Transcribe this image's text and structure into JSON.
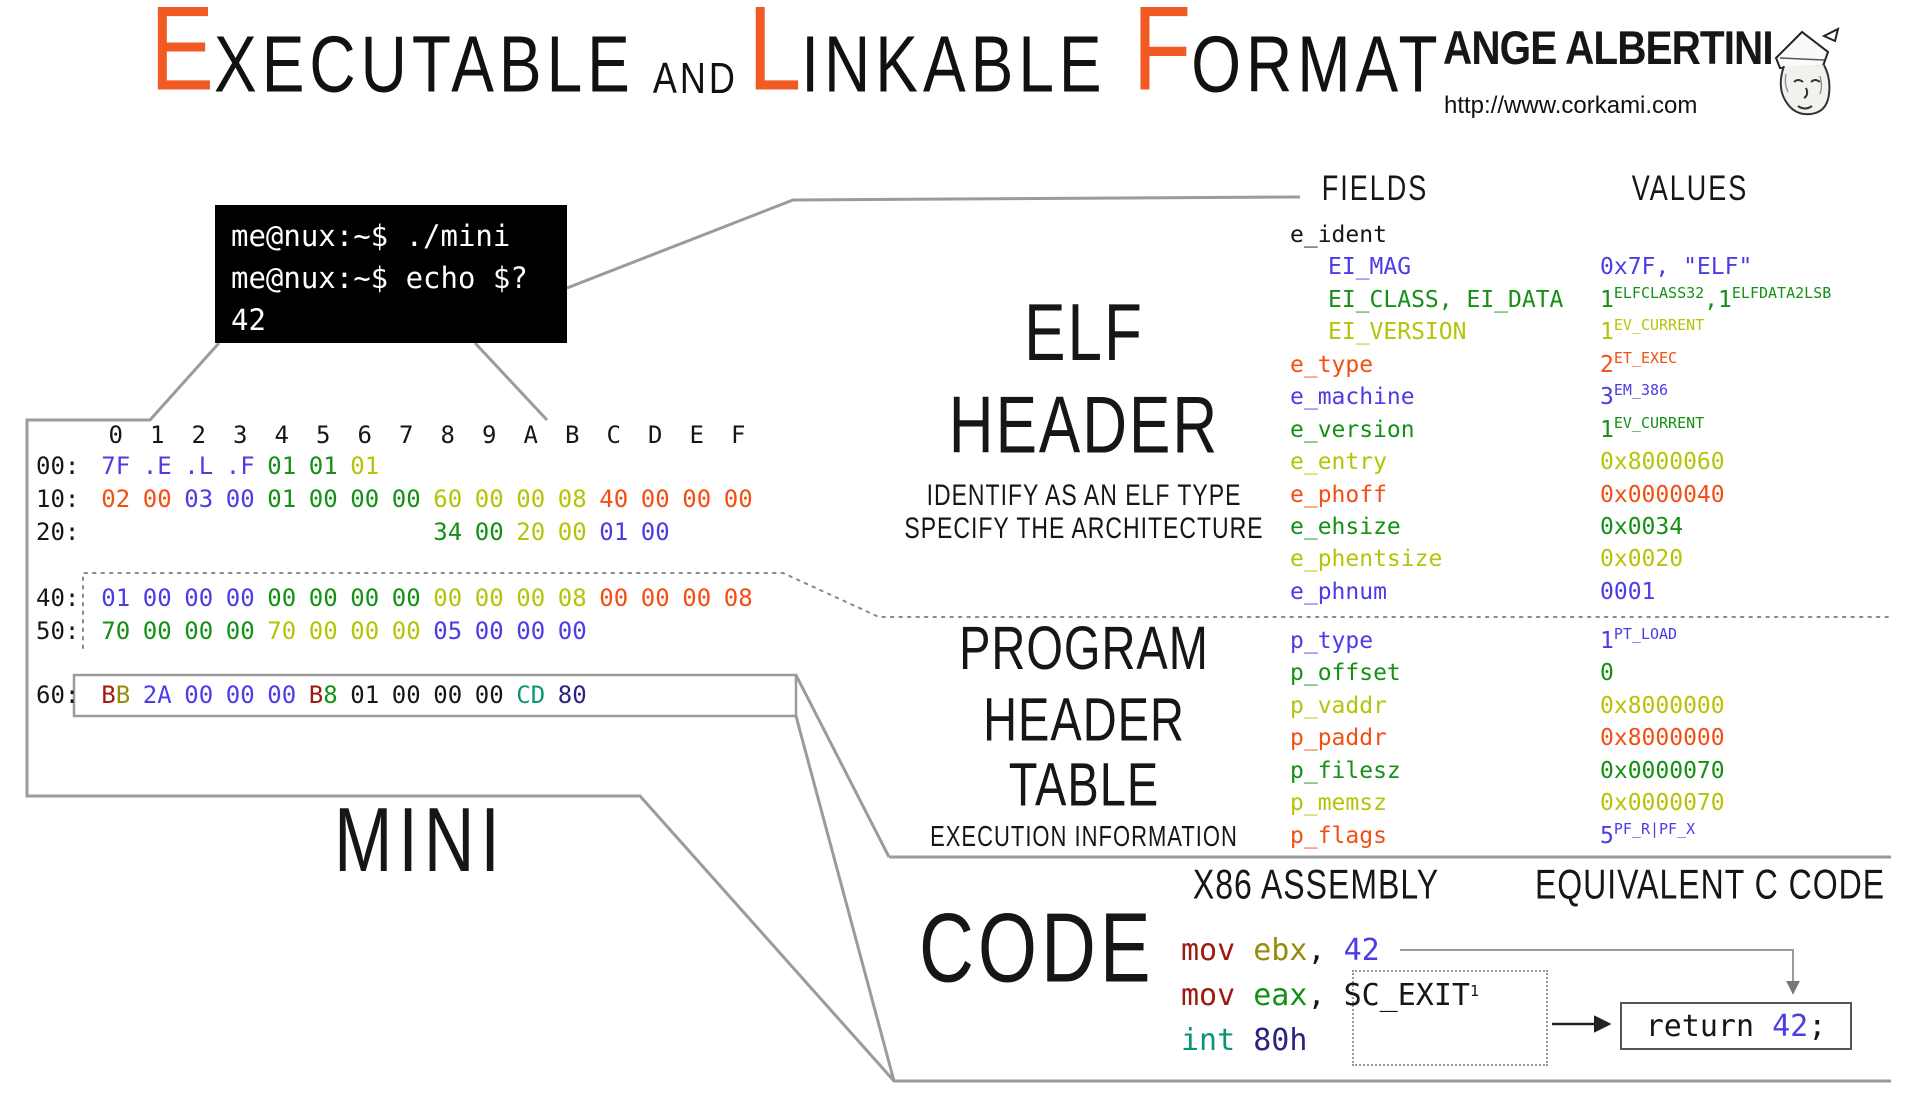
{
  "colors": {
    "indigo": "#4b3ce6",
    "navy": "#2b2483",
    "green": "#149114",
    "yellow": "#b5c309",
    "orange": "#f34f13",
    "maroon": "#9e1a10",
    "olive": "#958d0a",
    "teal": "#0a9579",
    "black": "#161616",
    "accent": "#f15a22",
    "line_gray": "#9b9b9b"
  },
  "title": {
    "t1": "E",
    "t1r": "XECUTABLE",
    "and": "AND",
    "t2": "L",
    "t2r": "INKABLE",
    "t3": "F",
    "t3r": "ORMAT"
  },
  "logo": {
    "name": "ANGE ALBERTINI",
    "url": "http://www.corkami.com"
  },
  "terminal": {
    "lines": [
      "me@nux:~$ ./mini",
      "me@nux:~$ echo $?",
      "42"
    ]
  },
  "hexdump": {
    "col_headers": [
      "0",
      "1",
      "2",
      "3",
      "4",
      "5",
      "6",
      "7",
      "8",
      "9",
      "A",
      "B",
      "C",
      "D",
      "E",
      "F"
    ],
    "rows": [
      {
        "label": "00:",
        "bytes": [
          [
            "7F",
            "indigo"
          ],
          [
            ".E",
            "indigo"
          ],
          [
            ".L",
            "indigo"
          ],
          [
            ".F",
            "indigo"
          ],
          [
            "01",
            "green"
          ],
          [
            "01",
            "green"
          ],
          [
            "01",
            "yellow"
          ]
        ]
      },
      {
        "label": "10:",
        "bytes": [
          [
            "02",
            "orange"
          ],
          [
            "00",
            "orange"
          ],
          [
            "03",
            "indigo"
          ],
          [
            "00",
            "indigo"
          ],
          [
            "01",
            "green"
          ],
          [
            "00",
            "green"
          ],
          [
            "00",
            "green"
          ],
          [
            "00",
            "green"
          ],
          [
            "60",
            "yellow"
          ],
          [
            "00",
            "yellow"
          ],
          [
            "00",
            "yellow"
          ],
          [
            "08",
            "yellow"
          ],
          [
            "40",
            "orange"
          ],
          [
            "00",
            "orange"
          ],
          [
            "00",
            "orange"
          ],
          [
            "00",
            "orange"
          ]
        ]
      },
      {
        "label": "20:",
        "bytes": [
          [
            "",
            ""
          ],
          [
            "",
            ""
          ],
          [
            "",
            ""
          ],
          [
            "",
            ""
          ],
          [
            "",
            ""
          ],
          [
            "",
            ""
          ],
          [
            "",
            ""
          ],
          [
            "",
            ""
          ],
          [
            "34",
            "green"
          ],
          [
            "00",
            "green"
          ],
          [
            "20",
            "yellow"
          ],
          [
            "00",
            "yellow"
          ],
          [
            "01",
            "indigo"
          ],
          [
            "00",
            "indigo"
          ]
        ]
      },
      {
        "label": "40:",
        "bytes": [
          [
            "01",
            "indigo"
          ],
          [
            "00",
            "indigo"
          ],
          [
            "00",
            "indigo"
          ],
          [
            "00",
            "indigo"
          ],
          [
            "00",
            "green"
          ],
          [
            "00",
            "green"
          ],
          [
            "00",
            "green"
          ],
          [
            "00",
            "green"
          ],
          [
            "00",
            "yellow"
          ],
          [
            "00",
            "yellow"
          ],
          [
            "00",
            "yellow"
          ],
          [
            "08",
            "yellow"
          ],
          [
            "00",
            "orange"
          ],
          [
            "00",
            "orange"
          ],
          [
            "00",
            "orange"
          ],
          [
            "08",
            "orange"
          ]
        ]
      },
      {
        "label": "50:",
        "bytes": [
          [
            "70",
            "green"
          ],
          [
            "00",
            "green"
          ],
          [
            "00",
            "green"
          ],
          [
            "00",
            "green"
          ],
          [
            "70",
            "yellow"
          ],
          [
            "00",
            "yellow"
          ],
          [
            "00",
            "yellow"
          ],
          [
            "00",
            "yellow"
          ],
          [
            "05",
            "indigo"
          ],
          [
            "00",
            "indigo"
          ],
          [
            "00",
            "indigo"
          ],
          [
            "00",
            "indigo"
          ]
        ]
      },
      {
        "label": "60:",
        "bytes": [
          {
            "parts": [
              [
                "B",
                "maroon"
              ],
              [
                "B",
                "olive"
              ]
            ]
          },
          [
            "2A",
            "indigo"
          ],
          [
            "00",
            "indigo"
          ],
          [
            "00",
            "indigo"
          ],
          [
            "00",
            "indigo"
          ],
          {
            "parts": [
              [
                "B",
                "maroon"
              ],
              [
                "8",
                "green"
              ]
            ]
          },
          [
            "01",
            "black"
          ],
          [
            "00",
            "black"
          ],
          [
            "00",
            "black"
          ],
          [
            "00",
            "black"
          ],
          [
            "CD",
            "teal"
          ],
          [
            "80",
            "navy"
          ]
        ]
      }
    ]
  },
  "sections": {
    "elf_header": {
      "title": "ELF HEADER",
      "sub1": "IDENTIFY AS AN ELF TYPE",
      "sub2": "SPECIFY THE ARCHITECTURE"
    },
    "program_header": {
      "line1": "PROGRAM HEADER",
      "line2": "TABLE",
      "sub": "EXECUTION INFORMATION"
    },
    "code_title": "CODE",
    "file_label": "MINI"
  },
  "table": {
    "fields_header": "FIELDS",
    "values_header": "VALUES",
    "rows_elf": [
      {
        "field": "e_ident",
        "fc": "black",
        "indent": 0,
        "value": []
      },
      {
        "field": "EI_MAG",
        "fc": "indigo",
        "indent": 1,
        "value": [
          {
            "t": "0x7F, \"ELF\""
          }
        ]
      },
      {
        "field": "EI_CLASS, EI_DATA",
        "fc": "green",
        "indent": 1,
        "value": [
          {
            "t": "1"
          },
          {
            "t": "ELFCLASS32",
            "sup": true
          },
          {
            "t": ","
          },
          {
            "t": "1"
          },
          {
            "t": "ELFDATA2LSB",
            "sup": true
          }
        ]
      },
      {
        "field": "EI_VERSION",
        "fc": "yellow",
        "indent": 1,
        "value": [
          {
            "t": "1"
          },
          {
            "t": "EV_CURRENT",
            "sup": true
          }
        ]
      },
      {
        "field": "e_type",
        "fc": "orange",
        "indent": 0,
        "value": [
          {
            "t": "2"
          },
          {
            "t": "ET_EXEC",
            "sup": true
          }
        ]
      },
      {
        "field": "e_machine",
        "fc": "indigo",
        "indent": 0,
        "value": [
          {
            "t": "3"
          },
          {
            "t": "EM_386",
            "sup": true
          }
        ]
      },
      {
        "field": "e_version",
        "fc": "green",
        "indent": 0,
        "value": [
          {
            "t": "1"
          },
          {
            "t": "EV_CURRENT",
            "sup": true
          }
        ]
      },
      {
        "field": "e_entry",
        "fc": "yellow",
        "indent": 0,
        "value": [
          {
            "t": "0x8000060"
          }
        ]
      },
      {
        "field": "e_phoff",
        "fc": "orange",
        "indent": 0,
        "value": [
          {
            "t": "0x0000040"
          }
        ]
      },
      {
        "field": "e_ehsize",
        "fc": "green",
        "indent": 0,
        "value": [
          {
            "t": "0x0034"
          }
        ]
      },
      {
        "field": "e_phentsize",
        "fc": "yellow",
        "indent": 0,
        "value": [
          {
            "t": "0x0020"
          }
        ]
      },
      {
        "field": "e_phnum",
        "fc": "indigo",
        "indent": 0,
        "value": [
          {
            "t": "0001"
          }
        ]
      }
    ],
    "rows_ph": [
      {
        "field": "p_type",
        "fc": "indigo",
        "indent": 0,
        "value": [
          {
            "t": "1"
          },
          {
            "t": "PT_LOAD",
            "sup": true
          }
        ]
      },
      {
        "field": "p_offset",
        "fc": "green",
        "indent": 0,
        "value": [
          {
            "t": "0"
          }
        ]
      },
      {
        "field": "p_vaddr",
        "fc": "yellow",
        "indent": 0,
        "value": [
          {
            "t": "0x8000000"
          }
        ]
      },
      {
        "field": "p_paddr",
        "fc": "orange",
        "indent": 0,
        "value": [
          {
            "t": "0x8000000"
          }
        ]
      },
      {
        "field": "p_filesz",
        "fc": "green",
        "indent": 0,
        "value": [
          {
            "t": "0x0000070"
          }
        ]
      },
      {
        "field": "p_memsz",
        "fc": "yellow",
        "indent": 0,
        "value": [
          {
            "t": "0x0000070"
          }
        ]
      },
      {
        "field": "p_flags",
        "fc": "orange",
        "vc": "indigo",
        "indent": 0,
        "value": [
          {
            "t": "5"
          },
          {
            "t": "PF_R|PF_X",
            "sup": true
          }
        ]
      }
    ]
  },
  "code_panel": {
    "asm_header": "X86 ASSEMBLY",
    "c_header": "EQUIVALENT C CODE",
    "asm_lines": [
      [
        {
          "t": "mov ",
          "c": "maroon"
        },
        {
          "t": "ebx",
          "c": "olive"
        },
        {
          "t": ", ",
          "c": "black"
        },
        {
          "t": "42",
          "c": "indigo"
        }
      ],
      [
        {
          "t": "mov ",
          "c": "maroon"
        },
        {
          "t": "eax",
          "c": "green"
        },
        {
          "t": ", ",
          "c": "black"
        },
        {
          "t": "SC_EXIT",
          "c": "black"
        },
        {
          "t": "1",
          "c": "black",
          "sup": true
        }
      ],
      [
        {
          "t": "int ",
          "c": "teal"
        },
        {
          "t": "80h",
          "c": "navy"
        }
      ]
    ],
    "c_code": [
      {
        "t": "return ",
        "c": "black"
      },
      {
        "t": "42",
        "c": "indigo"
      },
      {
        "t": ";",
        "c": "black"
      }
    ]
  }
}
